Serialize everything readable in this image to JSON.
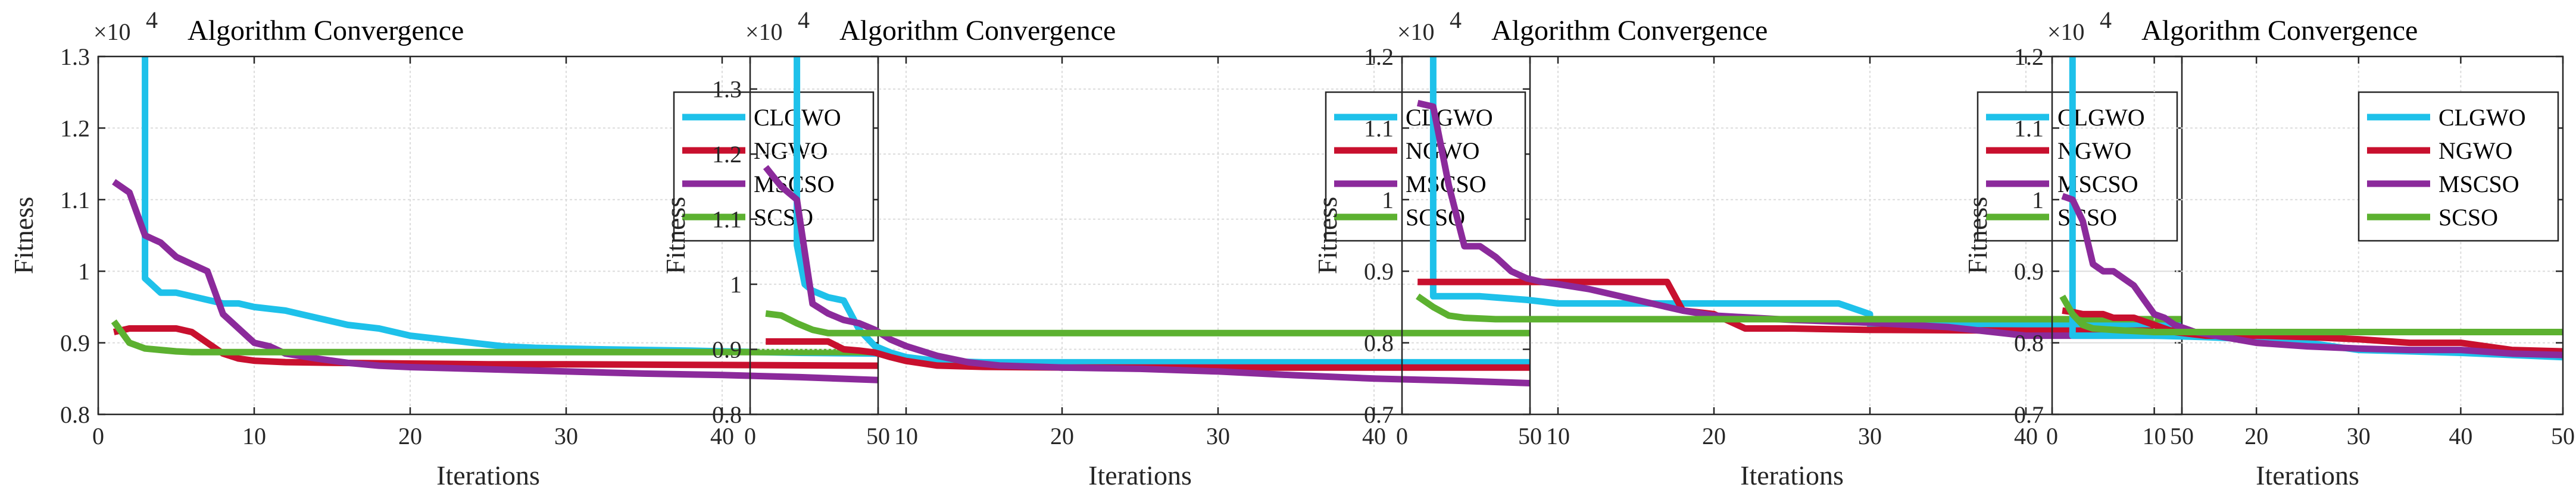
{
  "chart_data": [
    {
      "type": "line",
      "title": "Algorithm Convergence",
      "xlabel": "Iterations",
      "ylabel": "Fitness",
      "exponent_label": "×10",
      "exponent_power": "4",
      "xlim": [
        0,
        50
      ],
      "ylim": [
        0.8,
        1.3
      ],
      "xticks": [
        "0",
        "10",
        "20",
        "30",
        "40",
        "50"
      ],
      "yticks": [
        "0.8",
        "0.9",
        "1",
        "1.1",
        "1.2",
        "1.3"
      ],
      "ytick_values": [
        0.8,
        0.9,
        1.0,
        1.1,
        1.2,
        1.3
      ],
      "legend_position": "top-right",
      "series": [
        {
          "name": "CLGWO",
          "color": "#1ec1ea",
          "x": [
            3,
            3,
            4,
            5,
            6,
            7,
            8,
            9,
            10,
            12,
            14,
            16,
            18,
            20,
            22,
            24,
            26,
            28,
            30,
            32,
            35,
            38,
            40,
            45,
            50
          ],
          "values": [
            1.3,
            0.99,
            0.97,
            0.97,
            0.965,
            0.96,
            0.955,
            0.955,
            0.95,
            0.945,
            0.935,
            0.925,
            0.92,
            0.91,
            0.905,
            0.9,
            0.895,
            0.893,
            0.892,
            0.891,
            0.89,
            0.889,
            0.888,
            0.886,
            0.885
          ]
        },
        {
          "name": "NGWO",
          "color": "#c8102e",
          "x": [
            1,
            2,
            3,
            4,
            5,
            6,
            7,
            8,
            9,
            10,
            12,
            15,
            20,
            25,
            30,
            40,
            50
          ],
          "values": [
            0.915,
            0.92,
            0.92,
            0.92,
            0.92,
            0.915,
            0.9,
            0.885,
            0.878,
            0.875,
            0.873,
            0.872,
            0.871,
            0.87,
            0.87,
            0.869,
            0.868
          ]
        },
        {
          "name": "MSCSO",
          "color": "#8b2a9b",
          "x": [
            1,
            2,
            3,
            4,
            5,
            6,
            7,
            8,
            9,
            10,
            11,
            12,
            14,
            16,
            18,
            20,
            25,
            30,
            35,
            40,
            45,
            50
          ],
          "values": [
            1.125,
            1.11,
            1.05,
            1.04,
            1.02,
            1.01,
            1.0,
            0.94,
            0.92,
            0.9,
            0.895,
            0.885,
            0.878,
            0.872,
            0.868,
            0.866,
            0.863,
            0.86,
            0.857,
            0.855,
            0.852,
            0.848
          ]
        },
        {
          "name": "SCSO",
          "color": "#5cb130",
          "x": [
            1,
            2,
            3,
            4,
            5,
            6,
            8,
            10,
            15,
            20,
            30,
            40,
            50
          ],
          "values": [
            0.93,
            0.9,
            0.892,
            0.89,
            0.888,
            0.887,
            0.887,
            0.887,
            0.887,
            0.887,
            0.887,
            0.887,
            0.887
          ]
        }
      ]
    },
    {
      "type": "line",
      "title": "Algorithm Convergence",
      "xlabel": "Iterations",
      "ylabel": "Fitness",
      "exponent_label": "×10",
      "exponent_power": "4",
      "xlim": [
        0,
        50
      ],
      "ylim": [
        0.8,
        1.35
      ],
      "xticks": [
        "0",
        "10",
        "20",
        "30",
        "40",
        "50"
      ],
      "yticks": [
        "0.8",
        "0.9",
        "1",
        "1.1",
        "1.2",
        "1.3"
      ],
      "ytick_values": [
        0.8,
        0.9,
        1.0,
        1.1,
        1.2,
        1.3
      ],
      "legend_position": "top-right",
      "series": [
        {
          "name": "CLGWO",
          "color": "#1ec1ea",
          "x": [
            3,
            3,
            3.5,
            4,
            5,
            6,
            7,
            8,
            9,
            10,
            12,
            15,
            20,
            30,
            40,
            50
          ],
          "values": [
            1.35,
            1.06,
            1.0,
            0.99,
            0.98,
            0.975,
            0.93,
            0.905,
            0.895,
            0.888,
            0.882,
            0.88,
            0.88,
            0.88,
            0.88,
            0.88
          ]
        },
        {
          "name": "NGWO",
          "color": "#c8102e",
          "x": [
            1,
            2,
            3,
            4,
            5,
            6,
            7,
            8,
            9,
            10,
            12,
            15,
            20,
            30,
            40,
            50
          ],
          "values": [
            0.912,
            0.912,
            0.912,
            0.912,
            0.912,
            0.9,
            0.898,
            0.895,
            0.888,
            0.882,
            0.875,
            0.873,
            0.872,
            0.872,
            0.872,
            0.872
          ]
        },
        {
          "name": "MSCSO",
          "color": "#8b2a9b",
          "x": [
            1,
            2,
            3,
            4,
            5,
            6,
            7,
            8,
            9,
            10,
            12,
            14,
            16,
            20,
            25,
            30,
            35,
            40,
            45,
            50
          ],
          "values": [
            1.18,
            1.15,
            1.13,
            0.97,
            0.955,
            0.945,
            0.94,
            0.93,
            0.915,
            0.905,
            0.89,
            0.88,
            0.875,
            0.872,
            0.87,
            0.866,
            0.86,
            0.855,
            0.852,
            0.848
          ]
        },
        {
          "name": "SCSO",
          "color": "#5cb130",
          "x": [
            1,
            2,
            3,
            4,
            5,
            6,
            8,
            10,
            20,
            30,
            40,
            50
          ],
          "values": [
            0.955,
            0.952,
            0.94,
            0.93,
            0.925,
            0.925,
            0.925,
            0.925,
            0.925,
            0.925,
            0.925,
            0.925
          ]
        }
      ]
    },
    {
      "type": "line",
      "title": "Algorithm Convergence",
      "xlabel": "Iterations",
      "ylabel": "Fitness",
      "exponent_label": "×10",
      "exponent_power": "4",
      "xlim": [
        0,
        50
      ],
      "ylim": [
        0.7,
        1.2
      ],
      "xticks": [
        "0",
        "10",
        "20",
        "30",
        "40",
        "50"
      ],
      "yticks": [
        "0.7",
        "0.8",
        "0.9",
        "1",
        "1.1",
        "1.2"
      ],
      "ytick_values": [
        0.7,
        0.8,
        0.9,
        1.0,
        1.1,
        1.2
      ],
      "legend_position": "top-right",
      "series": [
        {
          "name": "CLGWO",
          "color": "#1ec1ea",
          "x": [
            2,
            2,
            3,
            5,
            8,
            10,
            15,
            20,
            25,
            28,
            30,
            30,
            40,
            50
          ],
          "values": [
            1.2,
            0.865,
            0.865,
            0.865,
            0.86,
            0.855,
            0.855,
            0.855,
            0.855,
            0.855,
            0.84,
            0.825,
            0.825,
            0.825
          ]
        },
        {
          "name": "NGWO",
          "color": "#c8102e",
          "x": [
            1,
            5,
            10,
            15,
            17,
            18,
            20,
            22,
            25,
            30,
            40,
            50
          ],
          "values": [
            0.885,
            0.885,
            0.885,
            0.885,
            0.885,
            0.845,
            0.84,
            0.82,
            0.82,
            0.818,
            0.817,
            0.817
          ]
        },
        {
          "name": "MSCSO",
          "color": "#8b2a9b",
          "x": [
            1,
            2,
            3,
            4,
            5,
            6,
            7,
            8,
            9,
            10,
            12,
            14,
            16,
            18,
            20,
            25,
            30,
            35,
            40,
            45,
            50
          ],
          "values": [
            1.135,
            1.13,
            1.02,
            0.935,
            0.935,
            0.92,
            0.9,
            0.89,
            0.885,
            0.882,
            0.875,
            0.865,
            0.855,
            0.845,
            0.838,
            0.832,
            0.828,
            0.822,
            0.81,
            0.81,
            0.81
          ]
        },
        {
          "name": "SCSO",
          "color": "#5cb130",
          "x": [
            1,
            2,
            3,
            4,
            6,
            10,
            20,
            30,
            40,
            50
          ],
          "values": [
            0.865,
            0.85,
            0.838,
            0.835,
            0.833,
            0.833,
            0.833,
            0.833,
            0.833,
            0.833
          ]
        }
      ]
    },
    {
      "type": "line",
      "title": "Algorithm Convergence",
      "xlabel": "Iterations",
      "ylabel": "Fitness",
      "exponent_label": "×10",
      "exponent_power": "4",
      "xlim": [
        0,
        50
      ],
      "ylim": [
        0.7,
        1.2
      ],
      "xticks": [
        "0",
        "10",
        "20",
        "30",
        "40",
        "50"
      ],
      "yticks": [
        "0.7",
        "0.8",
        "0.9",
        "1",
        "1.1",
        "1.2"
      ],
      "ytick_values": [
        0.7,
        0.8,
        0.9,
        1.0,
        1.1,
        1.2
      ],
      "legend_position": "top-right",
      "series": [
        {
          "name": "CLGWO",
          "color": "#1ec1ea",
          "x": [
            2,
            2,
            3,
            5,
            10,
            15,
            20,
            25,
            30,
            35,
            40,
            45,
            50
          ],
          "values": [
            1.2,
            0.81,
            0.81,
            0.81,
            0.81,
            0.808,
            0.805,
            0.8,
            0.79,
            0.788,
            0.786,
            0.783,
            0.78
          ]
        },
        {
          "name": "NGWO",
          "color": "#c8102e",
          "x": [
            1,
            2,
            3,
            4,
            5,
            6,
            7,
            8,
            9,
            10,
            12,
            15,
            20,
            25,
            30,
            35,
            40,
            45,
            50
          ],
          "values": [
            0.845,
            0.843,
            0.84,
            0.84,
            0.84,
            0.835,
            0.835,
            0.835,
            0.83,
            0.825,
            0.815,
            0.81,
            0.81,
            0.808,
            0.805,
            0.8,
            0.8,
            0.79,
            0.788
          ]
        },
        {
          "name": "MSCSO",
          "color": "#8b2a9b",
          "x": [
            1,
            2,
            3,
            4,
            5,
            6,
            7,
            8,
            9,
            10,
            11,
            12,
            14,
            16,
            20,
            25,
            30,
            35,
            40,
            45,
            50
          ],
          "values": [
            1.005,
            1.0,
            0.97,
            0.91,
            0.9,
            0.9,
            0.89,
            0.88,
            0.86,
            0.84,
            0.835,
            0.825,
            0.815,
            0.81,
            0.8,
            0.795,
            0.792,
            0.79,
            0.79,
            0.785,
            0.783
          ]
        },
        {
          "name": "SCSO",
          "color": "#5cb130",
          "x": [
            1,
            2,
            3,
            4,
            6,
            10,
            20,
            30,
            40,
            50
          ],
          "values": [
            0.865,
            0.84,
            0.825,
            0.82,
            0.818,
            0.815,
            0.815,
            0.815,
            0.815,
            0.815
          ]
        }
      ]
    }
  ]
}
